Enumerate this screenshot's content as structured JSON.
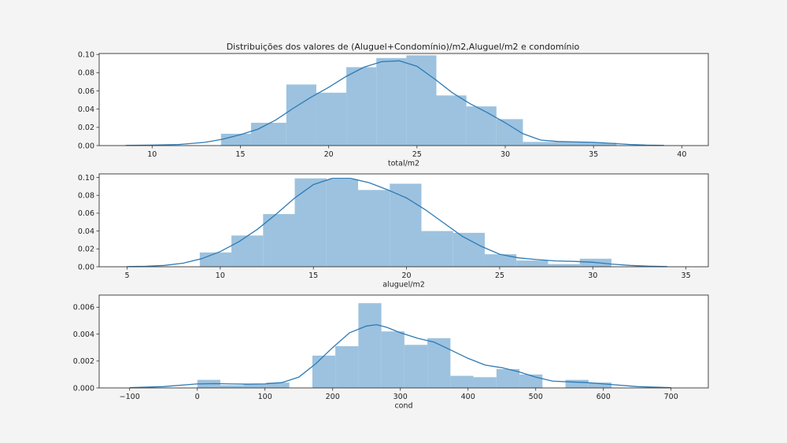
{
  "title": "Distribuições dos valores de (Aluguel+Condomínio)/m2,Aluguel/m2 e condomínio",
  "colors": {
    "bar": "#9cc2df",
    "kde": "#2f7ab4",
    "frame": "#333333",
    "text": "#222222"
  },
  "chart_data": [
    {
      "type": "bar",
      "subtype": "histogram+kde",
      "xlabel": "total/m2",
      "xlim": [
        7,
        41.5
      ],
      "ylim": [
        0,
        0.101
      ],
      "xticks": [
        10,
        15,
        20,
        25,
        30,
        35,
        40
      ],
      "xtick_labels": [
        "10",
        "15",
        "20",
        "25",
        "30",
        "35",
        "40"
      ],
      "yticks": [
        0,
        0.02,
        0.04,
        0.06,
        0.08,
        0.1
      ],
      "ytick_labels": [
        "0.00",
        "0.02",
        "0.04",
        "0.06",
        "0.08",
        "0.10"
      ],
      "bins": [
        {
          "x0": 13.9,
          "x1": 15.6,
          "value": 0.013
        },
        {
          "x0": 15.6,
          "x1": 17.6,
          "value": 0.025
        },
        {
          "x0": 17.6,
          "x1": 19.3,
          "value": 0.067
        },
        {
          "x0": 19.3,
          "x1": 21.0,
          "value": 0.058
        },
        {
          "x0": 21.0,
          "x1": 22.7,
          "value": 0.086
        },
        {
          "x0": 22.7,
          "x1": 24.4,
          "value": 0.096
        },
        {
          "x0": 24.4,
          "x1": 26.1,
          "value": 0.099
        },
        {
          "x0": 26.1,
          "x1": 27.8,
          "value": 0.055
        },
        {
          "x0": 27.8,
          "x1": 29.5,
          "value": 0.043
        },
        {
          "x0": 29.5,
          "x1": 31.0,
          "value": 0.029
        },
        {
          "x0": 31.0,
          "x1": 33.0,
          "value": 0.004
        },
        {
          "x0": 33.0,
          "x1": 34.8,
          "value": 0.004
        },
        {
          "x0": 34.8,
          "x1": 36.3,
          "value": 0.003
        }
      ],
      "kde": [
        [
          8.5,
          0.0002
        ],
        [
          10,
          0.0005
        ],
        [
          11.5,
          0.0012
        ],
        [
          13,
          0.0035
        ],
        [
          14,
          0.007
        ],
        [
          15,
          0.012
        ],
        [
          16,
          0.018
        ],
        [
          17,
          0.028
        ],
        [
          18,
          0.041
        ],
        [
          19,
          0.053
        ],
        [
          20,
          0.064
        ],
        [
          21,
          0.076
        ],
        [
          22,
          0.086
        ],
        [
          23,
          0.092
        ],
        [
          24,
          0.093
        ],
        [
          25,
          0.087
        ],
        [
          26,
          0.073
        ],
        [
          27,
          0.058
        ],
        [
          28,
          0.046
        ],
        [
          29,
          0.036
        ],
        [
          30,
          0.025
        ],
        [
          31,
          0.013
        ],
        [
          32,
          0.006
        ],
        [
          33,
          0.0045
        ],
        [
          34,
          0.004
        ],
        [
          35,
          0.0035
        ],
        [
          36,
          0.0025
        ],
        [
          37,
          0.0013
        ],
        [
          38,
          0.0005
        ],
        [
          39,
          0.0002
        ]
      ]
    },
    {
      "type": "bar",
      "subtype": "histogram+kde",
      "xlabel": "aluguel/m2",
      "xlim": [
        3.5,
        36.2
      ],
      "ylim": [
        0,
        0.104
      ],
      "xticks": [
        5,
        10,
        15,
        20,
        25,
        30,
        35
      ],
      "xtick_labels": [
        "5",
        "10",
        "15",
        "20",
        "25",
        "30",
        "35"
      ],
      "yticks": [
        0,
        0.02,
        0.04,
        0.06,
        0.08,
        0.1
      ],
      "ytick_labels": [
        "0.00",
        "0.02",
        "0.04",
        "0.06",
        "0.08",
        "0.10"
      ],
      "bins": [
        {
          "x0": 8.9,
          "x1": 10.6,
          "value": 0.016
        },
        {
          "x0": 10.6,
          "x1": 12.3,
          "value": 0.035
        },
        {
          "x0": 12.3,
          "x1": 14.0,
          "value": 0.059
        },
        {
          "x0": 14.0,
          "x1": 15.7,
          "value": 0.099
        },
        {
          "x0": 15.7,
          "x1": 17.4,
          "value": 0.098
        },
        {
          "x0": 17.4,
          "x1": 19.1,
          "value": 0.086
        },
        {
          "x0": 19.1,
          "x1": 20.8,
          "value": 0.093
        },
        {
          "x0": 20.8,
          "x1": 22.5,
          "value": 0.04
        },
        {
          "x0": 22.5,
          "x1": 24.2,
          "value": 0.038
        },
        {
          "x0": 24.2,
          "x1": 25.9,
          "value": 0.014
        },
        {
          "x0": 25.9,
          "x1": 27.6,
          "value": 0.007
        },
        {
          "x0": 27.6,
          "x1": 29.3,
          "value": 0.003
        },
        {
          "x0": 29.3,
          "x1": 31.0,
          "value": 0.009
        }
      ],
      "kde": [
        [
          5,
          0.0002
        ],
        [
          6,
          0.0005
        ],
        [
          7,
          0.0015
        ],
        [
          8,
          0.004
        ],
        [
          9,
          0.009
        ],
        [
          10,
          0.017
        ],
        [
          11,
          0.028
        ],
        [
          12,
          0.042
        ],
        [
          13,
          0.059
        ],
        [
          14,
          0.077
        ],
        [
          15,
          0.092
        ],
        [
          16,
          0.099
        ],
        [
          17,
          0.099
        ],
        [
          18,
          0.094
        ],
        [
          19,
          0.086
        ],
        [
          20,
          0.077
        ],
        [
          21,
          0.064
        ],
        [
          22,
          0.049
        ],
        [
          23,
          0.034
        ],
        [
          24,
          0.023
        ],
        [
          25,
          0.014
        ],
        [
          26,
          0.01
        ],
        [
          27,
          0.008
        ],
        [
          28,
          0.0065
        ],
        [
          29,
          0.006
        ],
        [
          30,
          0.005
        ],
        [
          31,
          0.003
        ],
        [
          32,
          0.0015
        ],
        [
          33,
          0.0006
        ],
        [
          34,
          0.0002
        ]
      ]
    },
    {
      "type": "bar",
      "subtype": "histogram+kde",
      "xlabel": "cond",
      "xlim": [
        -145,
        755
      ],
      "ylim": [
        0,
        0.0069
      ],
      "xticks": [
        -100,
        0,
        100,
        200,
        300,
        400,
        500,
        600,
        700
      ],
      "xtick_labels": [
        "−100",
        "0",
        "100",
        "200",
        "300",
        "400",
        "500",
        "600",
        "700"
      ],
      "yticks": [
        0,
        0.002,
        0.004,
        0.006
      ],
      "ytick_labels": [
        "0.000",
        "0.002",
        "0.004",
        "0.006"
      ],
      "bins": [
        {
          "x0": 0,
          "x1": 34,
          "value": 0.0006
        },
        {
          "x0": 34,
          "x1": 68,
          "value": 0.0002
        },
        {
          "x0": 68,
          "x1": 102,
          "value": 0.0003
        },
        {
          "x0": 102,
          "x1": 136,
          "value": 0.0004
        },
        {
          "x0": 170,
          "x1": 204,
          "value": 0.0024
        },
        {
          "x0": 204,
          "x1": 238,
          "value": 0.0031
        },
        {
          "x0": 238,
          "x1": 272,
          "value": 0.0063
        },
        {
          "x0": 272,
          "x1": 306,
          "value": 0.0042
        },
        {
          "x0": 306,
          "x1": 340,
          "value": 0.0032
        },
        {
          "x0": 340,
          "x1": 374,
          "value": 0.0037
        },
        {
          "x0": 374,
          "x1": 408,
          "value": 0.0009
        },
        {
          "x0": 408,
          "x1": 442,
          "value": 0.0008
        },
        {
          "x0": 442,
          "x1": 476,
          "value": 0.0014
        },
        {
          "x0": 476,
          "x1": 510,
          "value": 0.001
        },
        {
          "x0": 544,
          "x1": 578,
          "value": 0.0006
        },
        {
          "x0": 578,
          "x1": 612,
          "value": 0.0004
        }
      ],
      "kde": [
        [
          -100,
          2e-05
        ],
        [
          -50,
          0.0001
        ],
        [
          0,
          0.0003
        ],
        [
          25,
          0.00032
        ],
        [
          50,
          0.0003
        ],
        [
          75,
          0.00028
        ],
        [
          100,
          0.0003
        ],
        [
          125,
          0.0004
        ],
        [
          150,
          0.0008
        ],
        [
          175,
          0.0018
        ],
        [
          200,
          0.003
        ],
        [
          225,
          0.0041
        ],
        [
          250,
          0.0046
        ],
        [
          265,
          0.0047
        ],
        [
          280,
          0.0045
        ],
        [
          300,
          0.0041
        ],
        [
          325,
          0.0037
        ],
        [
          350,
          0.0034
        ],
        [
          375,
          0.0028
        ],
        [
          400,
          0.0022
        ],
        [
          425,
          0.0017
        ],
        [
          450,
          0.0015
        ],
        [
          475,
          0.0012
        ],
        [
          500,
          0.0008
        ],
        [
          525,
          0.0005
        ],
        [
          550,
          0.00045
        ],
        [
          575,
          0.0004
        ],
        [
          600,
          0.0003
        ],
        [
          650,
          0.0001
        ],
        [
          700,
          2e-05
        ]
      ]
    }
  ]
}
